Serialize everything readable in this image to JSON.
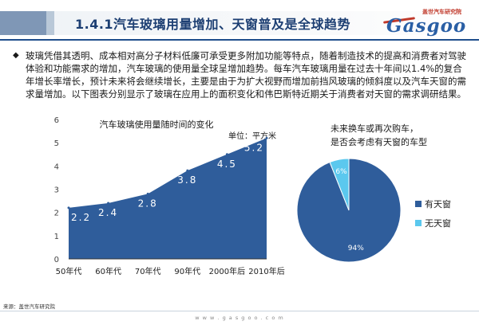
{
  "header": {
    "title": "1.4.1汽车玻璃用量增加、天窗普及是全球趋势"
  },
  "logo": {
    "small_text": "盖世汽车研究院",
    "main_text": "Gasgoo"
  },
  "paragraph": {
    "bullet": "◆",
    "text": "玻璃凭借其透明、成本相对高分子材料低廉可承受更多附加功能等特点，随着制造技术的提高和消费者对驾驶体验和功能需求的增加，汽车玻璃的使用量全球呈增加趋势。每车汽车玻璃用量在过去十年间以1.4%的复合年增长率增长，预计未来将会继续增长，主要是由于为扩大视野而增加前挡风玻璃的倾斜度以及汽车天窗的需求量增加。以下图表分别显示了玻璃在应用上的面积变化和伟巴斯特近期关于消费者对天窗的需求调研结果。"
  },
  "chart_data": [
    {
      "type": "area",
      "title": "汽车玻璃使用量随时间的变化",
      "unit_label": "单位：平方米",
      "categories": [
        "50年代",
        "60年代",
        "70年代",
        "90年代",
        "2000年后",
        "2010年后"
      ],
      "values": [
        2.2,
        2.4,
        2.8,
        3.8,
        4.5,
        5.2
      ],
      "ylim": [
        0,
        6
      ],
      "yticks": [
        "0",
        "1",
        "2",
        "3",
        "4",
        "5",
        "6"
      ],
      "color": "#2f5d9b",
      "grid": false
    },
    {
      "type": "pie",
      "title_lines": [
        "未来换车或再次购车，",
        "是否会考虑有天窗的车型"
      ],
      "slices": [
        {
          "label": "有天窗",
          "value": 94,
          "value_label": "94%",
          "color": "#2f5d9b"
        },
        {
          "label": "无天窗",
          "value": 6,
          "value_label": "6%",
          "color": "#5bc8ee"
        }
      ],
      "legend": "right"
    }
  ],
  "footer": {
    "source": "来源：盖世汽车研究院",
    "url": "w w w . g a s g o o . c o m"
  }
}
